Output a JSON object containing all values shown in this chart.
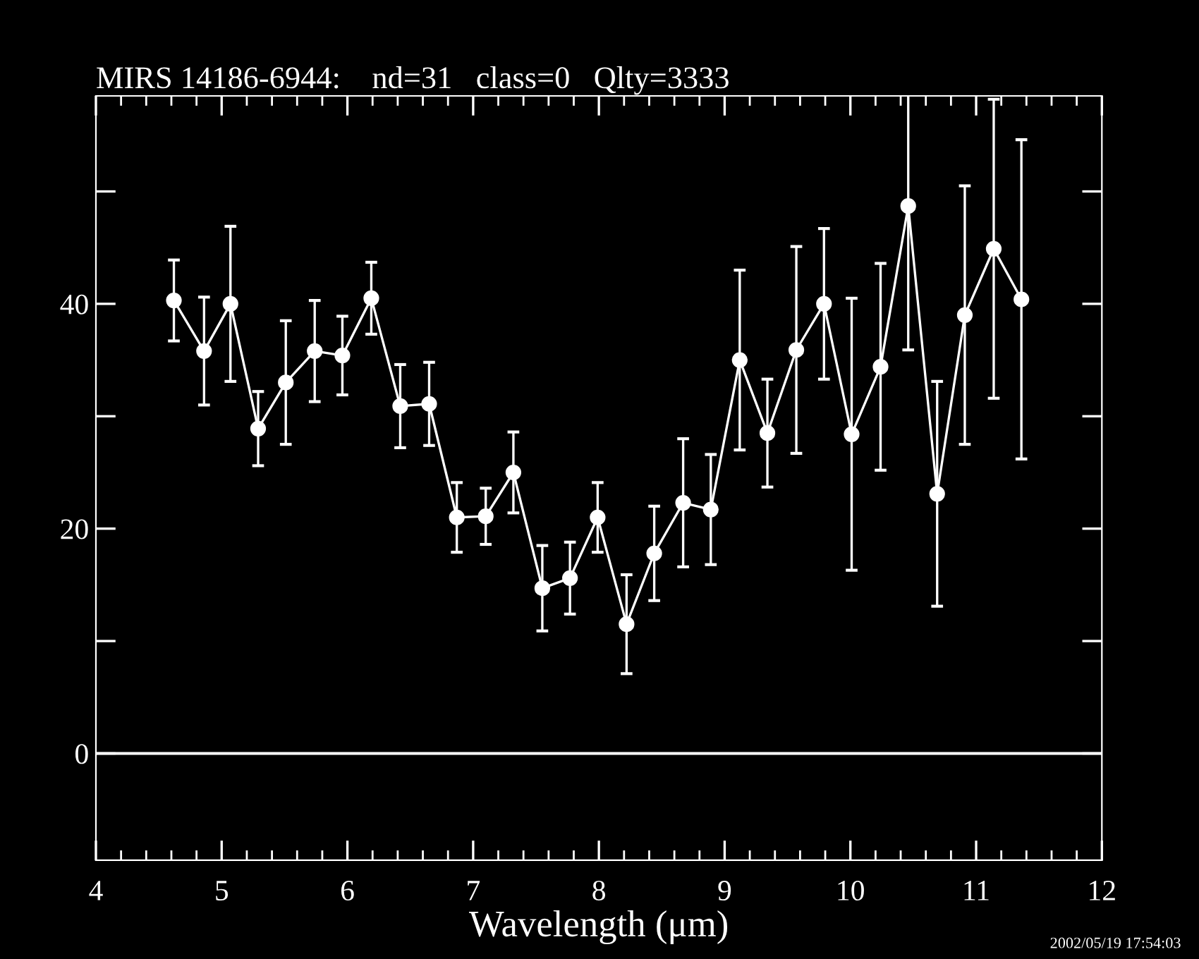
{
  "chart_data": {
    "type": "line",
    "title": "MIRS 14186-6944:    nd=31   class=0   Qlty=3333",
    "xlabel": "Wavelength (μm)",
    "x": [
      4.62,
      4.86,
      5.07,
      5.29,
      5.51,
      5.74,
      5.96,
      6.19,
      6.42,
      6.65,
      6.87,
      7.1,
      7.32,
      7.55,
      7.77,
      7.99,
      8.22,
      8.44,
      8.67,
      8.89,
      9.12,
      9.34,
      9.57,
      9.79,
      10.01,
      10.24,
      10.46,
      10.69,
      10.91,
      11.14,
      11.36
    ],
    "series": [
      {
        "color": "#ffffff",
        "values": [
          40.3,
          35.8,
          40.0,
          28.9,
          33.0,
          35.8,
          35.4,
          40.5,
          30.9,
          31.1,
          21.0,
          21.1,
          25.0,
          14.7,
          15.6,
          21.0,
          11.5,
          17.8,
          22.3,
          21.7,
          35.0,
          28.5,
          35.9,
          40.0,
          28.4,
          34.4,
          48.7,
          23.1,
          39.0,
          44.9,
          40.4
        ],
        "errors": [
          3.6,
          4.8,
          6.9,
          3.3,
          5.5,
          4.5,
          3.5,
          3.2,
          3.7,
          3.7,
          3.1,
          2.5,
          3.6,
          3.8,
          3.2,
          3.1,
          4.4,
          4.2,
          5.7,
          4.9,
          8.0,
          4.8,
          9.2,
          6.7,
          12.1,
          9.2,
          12.8,
          10.0,
          11.5,
          13.3,
          14.2
        ]
      }
    ],
    "marker": "circle",
    "line_style": "solid",
    "xlim": [
      4,
      12
    ],
    "xticks": [
      4,
      5,
      6,
      7,
      8,
      9,
      10,
      11,
      12
    ],
    "ylim": [
      -9.5,
      58.5
    ],
    "yticks": [
      0,
      {
        "value": 10,
        "label": null
      },
      20,
      {
        "value": 30,
        "label": null
      },
      40,
      {
        "value": 50,
        "label": null
      }
    ],
    "ref_lines": [
      {
        "axis": "y",
        "value": 0,
        "color": "#ffffff",
        "line_style": "solid"
      }
    ],
    "grid": false,
    "legend": false,
    "annotations": [
      "2002/05/19 17:54:03"
    ]
  }
}
